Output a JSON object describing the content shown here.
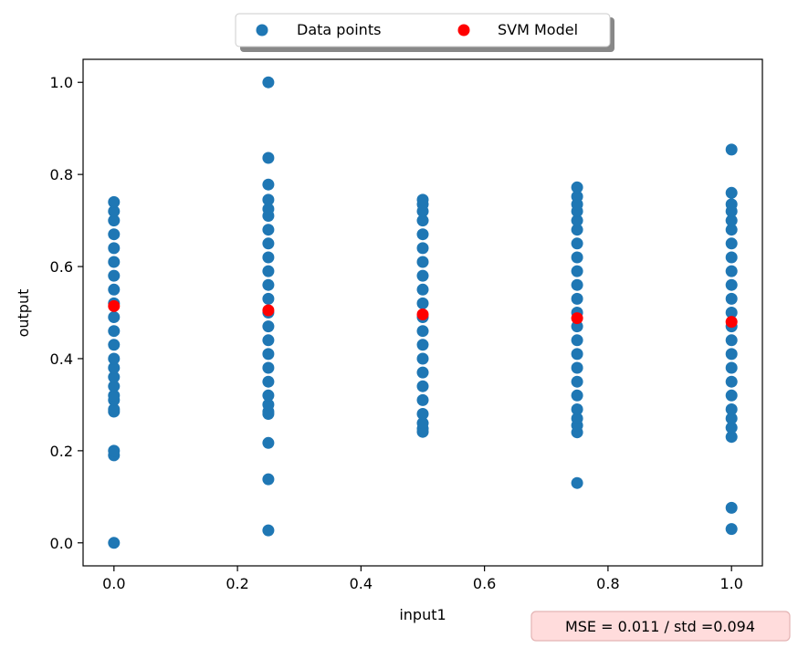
{
  "colors": {
    "data_points": "#1f77b4",
    "svm_model": "#ff0000",
    "annotation_bg": "#ffdcdc",
    "annotation_border": "#e4b4b4"
  },
  "chart_data": {
    "type": "scatter",
    "xlabel": "input1",
    "ylabel": "output",
    "xlim": [
      -0.05,
      1.05
    ],
    "ylim": [
      -0.05,
      1.05
    ],
    "xticks": [
      0.0,
      0.2,
      0.4,
      0.6,
      0.8,
      1.0
    ],
    "yticks": [
      0.0,
      0.2,
      0.4,
      0.6,
      0.8,
      1.0
    ],
    "xtick_labels": [
      "0.0",
      "0.2",
      "0.4",
      "0.6",
      "0.8",
      "1.0"
    ],
    "ytick_labels": [
      "0.0",
      "0.2",
      "0.4",
      "0.6",
      "0.8",
      "1.0"
    ],
    "grid": false,
    "legend_position": "top-center-outside",
    "annotation": "MSE = 0.011 / std =0.094",
    "series": [
      {
        "name": "Data points",
        "color": "#1f77b4",
        "points": [
          [
            0.0,
            0.0
          ],
          [
            0.0,
            0.19
          ],
          [
            0.0,
            0.2
          ],
          [
            0.0,
            0.285
          ],
          [
            0.0,
            0.29
          ],
          [
            0.0,
            0.31
          ],
          [
            0.0,
            0.32
          ],
          [
            0.0,
            0.34
          ],
          [
            0.0,
            0.36
          ],
          [
            0.0,
            0.38
          ],
          [
            0.0,
            0.4
          ],
          [
            0.0,
            0.43
          ],
          [
            0.0,
            0.46
          ],
          [
            0.0,
            0.49
          ],
          [
            0.0,
            0.52
          ],
          [
            0.0,
            0.55
          ],
          [
            0.0,
            0.58
          ],
          [
            0.0,
            0.61
          ],
          [
            0.0,
            0.64
          ],
          [
            0.0,
            0.67
          ],
          [
            0.0,
            0.7
          ],
          [
            0.0,
            0.72
          ],
          [
            0.0,
            0.74
          ],
          [
            0.25,
            0.027
          ],
          [
            0.25,
            0.138
          ],
          [
            0.25,
            0.217
          ],
          [
            0.25,
            0.28
          ],
          [
            0.25,
            0.285
          ],
          [
            0.25,
            0.3
          ],
          [
            0.25,
            0.32
          ],
          [
            0.25,
            0.35
          ],
          [
            0.25,
            0.38
          ],
          [
            0.25,
            0.41
          ],
          [
            0.25,
            0.44
          ],
          [
            0.25,
            0.47
          ],
          [
            0.25,
            0.5
          ],
          [
            0.25,
            0.53
          ],
          [
            0.25,
            0.56
          ],
          [
            0.25,
            0.59
          ],
          [
            0.25,
            0.62
          ],
          [
            0.25,
            0.65
          ],
          [
            0.25,
            0.68
          ],
          [
            0.25,
            0.71
          ],
          [
            0.25,
            0.725
          ],
          [
            0.25,
            0.745
          ],
          [
            0.25,
            0.778
          ],
          [
            0.25,
            0.836
          ],
          [
            0.25,
            1.0
          ],
          [
            0.5,
            0.241
          ],
          [
            0.5,
            0.248
          ],
          [
            0.5,
            0.26
          ],
          [
            0.5,
            0.28
          ],
          [
            0.5,
            0.31
          ],
          [
            0.5,
            0.34
          ],
          [
            0.5,
            0.37
          ],
          [
            0.5,
            0.4
          ],
          [
            0.5,
            0.43
          ],
          [
            0.5,
            0.46
          ],
          [
            0.5,
            0.49
          ],
          [
            0.5,
            0.52
          ],
          [
            0.5,
            0.55
          ],
          [
            0.5,
            0.58
          ],
          [
            0.5,
            0.61
          ],
          [
            0.5,
            0.64
          ],
          [
            0.5,
            0.67
          ],
          [
            0.5,
            0.7
          ],
          [
            0.5,
            0.72
          ],
          [
            0.5,
            0.735
          ],
          [
            0.5,
            0.745
          ],
          [
            0.75,
            0.13
          ],
          [
            0.75,
            0.24
          ],
          [
            0.75,
            0.255
          ],
          [
            0.75,
            0.27
          ],
          [
            0.75,
            0.29
          ],
          [
            0.75,
            0.32
          ],
          [
            0.75,
            0.35
          ],
          [
            0.75,
            0.38
          ],
          [
            0.75,
            0.41
          ],
          [
            0.75,
            0.44
          ],
          [
            0.75,
            0.47
          ],
          [
            0.75,
            0.5
          ],
          [
            0.75,
            0.53
          ],
          [
            0.75,
            0.56
          ],
          [
            0.75,
            0.59
          ],
          [
            0.75,
            0.62
          ],
          [
            0.75,
            0.65
          ],
          [
            0.75,
            0.68
          ],
          [
            0.75,
            0.7
          ],
          [
            0.75,
            0.72
          ],
          [
            0.75,
            0.735
          ],
          [
            0.75,
            0.752
          ],
          [
            0.75,
            0.772
          ],
          [
            1.0,
            0.03
          ],
          [
            1.0,
            0.076
          ],
          [
            1.0,
            0.23
          ],
          [
            1.0,
            0.25
          ],
          [
            1.0,
            0.27
          ],
          [
            1.0,
            0.29
          ],
          [
            1.0,
            0.32
          ],
          [
            1.0,
            0.35
          ],
          [
            1.0,
            0.38
          ],
          [
            1.0,
            0.41
          ],
          [
            1.0,
            0.44
          ],
          [
            1.0,
            0.47
          ],
          [
            1.0,
            0.5
          ],
          [
            1.0,
            0.53
          ],
          [
            1.0,
            0.56
          ],
          [
            1.0,
            0.59
          ],
          [
            1.0,
            0.62
          ],
          [
            1.0,
            0.65
          ],
          [
            1.0,
            0.68
          ],
          [
            1.0,
            0.7
          ],
          [
            1.0,
            0.72
          ],
          [
            1.0,
            0.735
          ],
          [
            1.0,
            0.76
          ],
          [
            1.0,
            0.854
          ]
        ]
      },
      {
        "name": "SVM Model",
        "color": "#ff0000",
        "points": [
          [
            0.0,
            0.514
          ],
          [
            0.25,
            0.505
          ],
          [
            0.5,
            0.496
          ],
          [
            0.75,
            0.488
          ],
          [
            1.0,
            0.48
          ]
        ]
      }
    ]
  }
}
